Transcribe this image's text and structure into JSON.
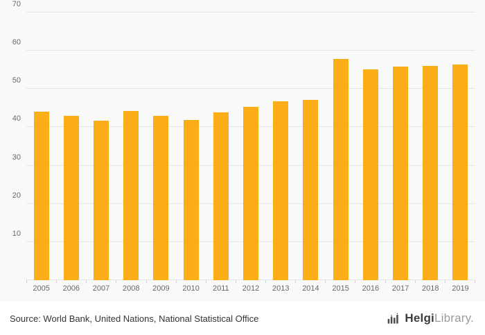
{
  "chart_data": {
    "type": "bar",
    "categories": [
      "2005",
      "2006",
      "2007",
      "2008",
      "2009",
      "2010",
      "2011",
      "2012",
      "2013",
      "2014",
      "2015",
      "2016",
      "2017",
      "2018",
      "2019"
    ],
    "values": [
      44.0,
      42.9,
      41.8,
      44.2,
      43.0,
      41.9,
      43.9,
      45.4,
      46.7,
      47.2,
      57.9,
      55.2,
      55.8,
      56.1,
      56.4
    ],
    "title": "",
    "xlabel": "",
    "ylabel": "",
    "ylim": [
      0,
      70
    ],
    "ytick_step": 10,
    "yticks_labeled": [
      70,
      60,
      50,
      40,
      30,
      20,
      10
    ],
    "grid": true,
    "legend_position": "none",
    "bar_color": "#FBAE17",
    "gridline_color": "#e6e6e6"
  },
  "footer": {
    "source": "Source: World Bank, United Nations, National Statistical Office",
    "logo_bold": "Helgi",
    "logo_light": "Library."
  }
}
